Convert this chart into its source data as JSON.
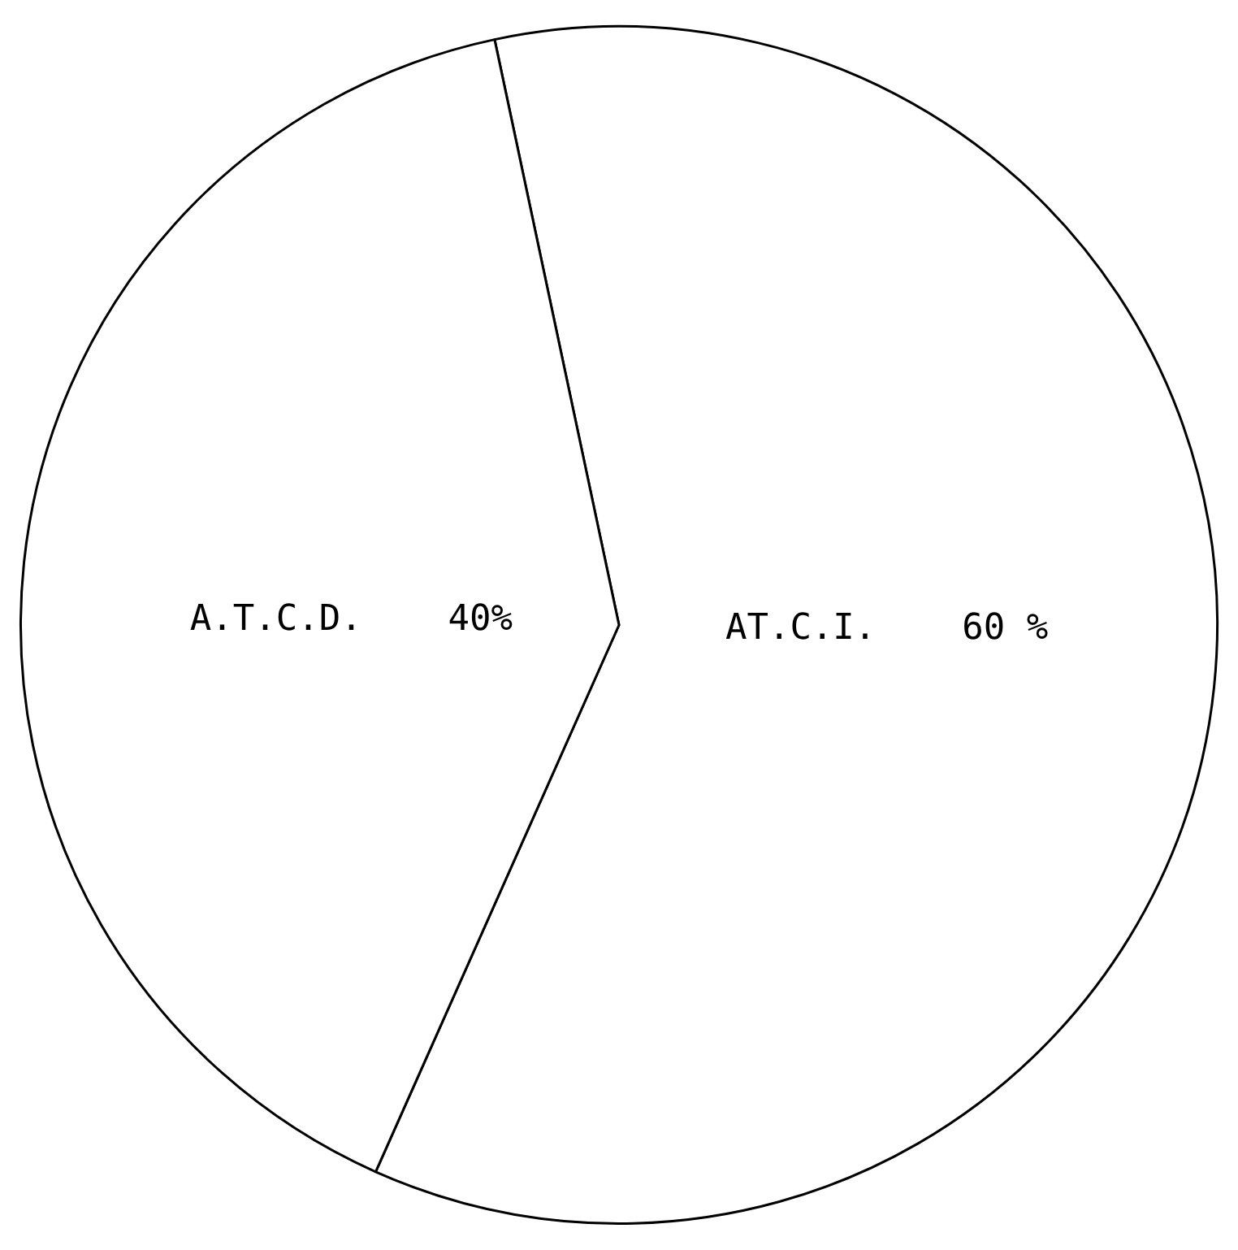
{
  "chart_data": {
    "type": "pie",
    "categories": [
      "AT.C.I.",
      "A.T.C.D."
    ],
    "values": [
      60,
      40
    ],
    "colors": [
      "#ffffff",
      "#ffffff"
    ],
    "value_labels": [
      "60 %",
      "40%"
    ],
    "legend": false
  }
}
